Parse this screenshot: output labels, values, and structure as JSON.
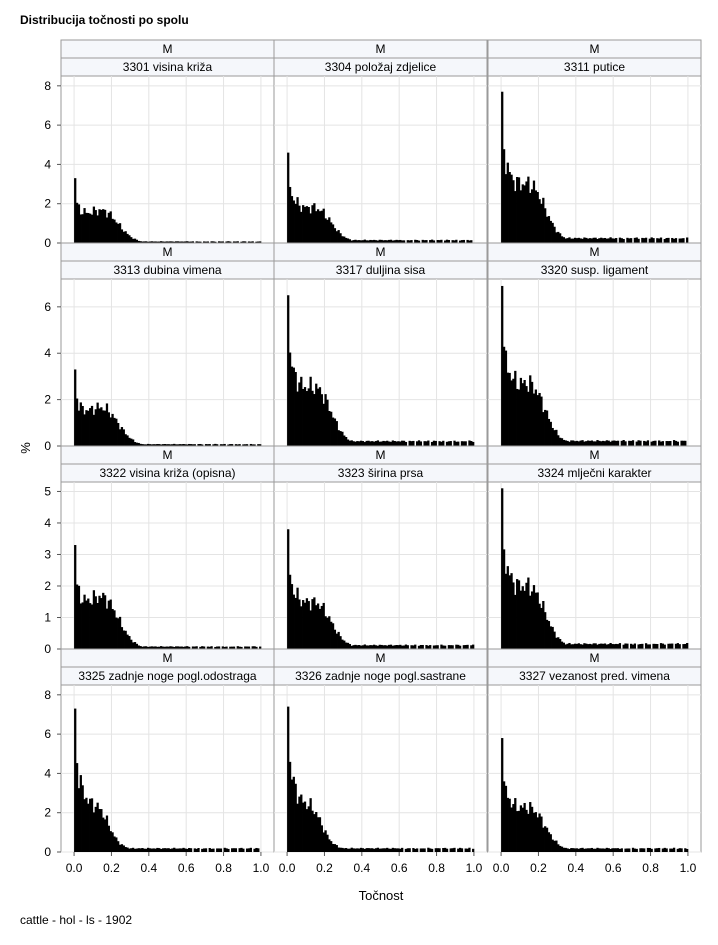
{
  "title": "Distribucija točnosti po spolu",
  "footnote": "cattle - hol - ls - 1902",
  "ylabel": "%",
  "xlabel": "Točnost",
  "colors": {
    "bar": "#000000",
    "header_fill": "#f5f7fb",
    "border": "#9a9a9a",
    "grid": "#e4e4e4"
  },
  "chart_data": [
    {
      "type": "bar",
      "row_header": "M",
      "panel_title": "3301 visina križa",
      "ylim": [
        0,
        8.5
      ],
      "yticks": [
        0,
        2,
        4,
        6,
        8
      ],
      "xlim": [
        -0.07,
        1.07
      ],
      "xticks": [
        "0.0",
        "0.2",
        "0.4",
        "0.6",
        "0.8",
        "1.0"
      ],
      "peak": 3.3,
      "shape": 1
    },
    {
      "type": "bar",
      "row_header": "M",
      "panel_title": "3304 položaj zdjelice",
      "ylim": [
        0,
        8.5
      ],
      "yticks": [
        0,
        2,
        4,
        6,
        8
      ],
      "xlim": [
        -0.07,
        1.07
      ],
      "xticks": [
        "0.0",
        "0.2",
        "0.4",
        "0.6",
        "0.8",
        "1.0"
      ],
      "peak": 4.6,
      "shape": 2
    },
    {
      "type": "bar",
      "row_header": "M",
      "panel_title": "3311 putice",
      "ylim": [
        0,
        8.5
      ],
      "yticks": [
        0,
        2,
        4,
        6,
        8
      ],
      "xlim": [
        -0.07,
        1.07
      ],
      "xticks": [
        "0.0",
        "0.2",
        "0.4",
        "0.6",
        "0.8",
        "1.0"
      ],
      "peak": 7.7,
      "shape": 2
    },
    {
      "type": "bar",
      "row_header": "M",
      "panel_title": "3313 dubina vimena",
      "ylim": [
        0,
        7.2
      ],
      "yticks": [
        0,
        2,
        4,
        6
      ],
      "xlim": [
        -0.07,
        1.07
      ],
      "xticks": [
        "0.0",
        "0.2",
        "0.4",
        "0.6",
        "0.8",
        "1.0"
      ],
      "peak": 3.3,
      "shape": 1
    },
    {
      "type": "bar",
      "row_header": "M",
      "panel_title": "3317 duljina sisa",
      "ylim": [
        0,
        7.2
      ],
      "yticks": [
        0,
        2,
        4,
        6
      ],
      "xlim": [
        -0.07,
        1.07
      ],
      "xticks": [
        "0.0",
        "0.2",
        "0.4",
        "0.6",
        "0.8",
        "1.0"
      ],
      "peak": 6.5,
      "shape": 2
    },
    {
      "type": "bar",
      "row_header": "M",
      "panel_title": "3320 susp. ligament",
      "ylim": [
        0,
        7.2
      ],
      "yticks": [
        0,
        2,
        4,
        6
      ],
      "xlim": [
        -0.07,
        1.07
      ],
      "xticks": [
        "0.0",
        "0.2",
        "0.4",
        "0.6",
        "0.8",
        "1.0"
      ],
      "peak": 6.9,
      "shape": 2
    },
    {
      "type": "bar",
      "row_header": "M",
      "panel_title": "3322 visina križa (opisna)",
      "ylim": [
        0,
        5.3
      ],
      "yticks": [
        0,
        1,
        2,
        3,
        4,
        5
      ],
      "xlim": [
        -0.07,
        1.07
      ],
      "xticks": [
        "0.0",
        "0.2",
        "0.4",
        "0.6",
        "0.8",
        "1.0"
      ],
      "peak": 3.3,
      "shape": 1
    },
    {
      "type": "bar",
      "row_header": "M",
      "panel_title": "3323 širina prsa",
      "ylim": [
        0,
        5.3
      ],
      "yticks": [
        0,
        1,
        2,
        3,
        4,
        5
      ],
      "xlim": [
        -0.07,
        1.07
      ],
      "xticks": [
        "0.0",
        "0.2",
        "0.4",
        "0.6",
        "0.8",
        "1.0"
      ],
      "peak": 3.8,
      "shape": 2
    },
    {
      "type": "bar",
      "row_header": "M",
      "panel_title": "3324 mlječni karakter",
      "ylim": [
        0,
        5.3
      ],
      "yticks": [
        0,
        1,
        2,
        3,
        4,
        5
      ],
      "xlim": [
        -0.07,
        1.07
      ],
      "xticks": [
        "0.0",
        "0.2",
        "0.4",
        "0.6",
        "0.8",
        "1.0"
      ],
      "peak": 5.1,
      "shape": 2
    },
    {
      "type": "bar",
      "row_header": "M",
      "panel_title": "3325 zadnje noge pogl.odostraga",
      "ylim": [
        0,
        8.5
      ],
      "yticks": [
        0,
        2,
        4,
        6,
        8
      ],
      "xlim": [
        -0.07,
        1.07
      ],
      "xticks": [
        "0.0",
        "0.2",
        "0.4",
        "0.6",
        "0.8",
        "1.0"
      ],
      "peak": 7.3,
      "shape": 3
    },
    {
      "type": "bar",
      "row_header": "M",
      "panel_title": "3326 zadnje noge pogl.sastrane",
      "ylim": [
        0,
        8.5
      ],
      "yticks": [
        0,
        2,
        4,
        6,
        8
      ],
      "xlim": [
        -0.07,
        1.07
      ],
      "xticks": [
        "0.0",
        "0.2",
        "0.4",
        "0.6",
        "0.8",
        "1.0"
      ],
      "peak": 7.4,
      "shape": 3
    },
    {
      "type": "bar",
      "row_header": "M",
      "panel_title": "3327 vezanost pred. vimena",
      "ylim": [
        0,
        8.5
      ],
      "yticks": [
        0,
        2,
        4,
        6,
        8
      ],
      "xlim": [
        -0.07,
        1.07
      ],
      "xticks": [
        "0.0",
        "0.2",
        "0.4",
        "0.6",
        "0.8",
        "1.0"
      ],
      "peak": 5.8,
      "shape": 2
    }
  ]
}
